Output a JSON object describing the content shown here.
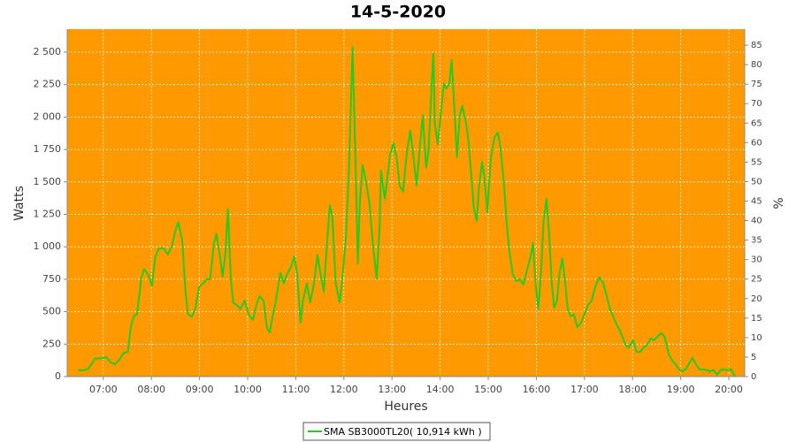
{
  "chart_data": {
    "type": "line",
    "title": "14-5-2020",
    "x_label": "Heures",
    "y_label": "Watts",
    "y2_label": "%",
    "x": [
      6.47,
      6.6,
      6.69,
      6.83,
      6.96,
      7.06,
      7.15,
      7.24,
      7.33,
      7.42,
      7.51,
      7.57,
      7.64,
      7.7,
      7.79,
      7.85,
      7.94,
      8.01,
      8.08,
      8.16,
      8.25,
      8.34,
      8.43,
      8.49,
      8.56,
      8.64,
      8.71,
      8.76,
      8.84,
      8.91,
      8.99,
      9.08,
      9.15,
      9.22,
      9.3,
      9.35,
      9.41,
      9.48,
      9.54,
      9.59,
      9.65,
      9.7,
      9.78,
      9.85,
      9.94,
      10.03,
      10.11,
      10.18,
      10.25,
      10.33,
      10.4,
      10.46,
      10.51,
      10.58,
      10.68,
      10.75,
      10.82,
      10.9,
      10.97,
      11.03,
      11.1,
      11.15,
      11.23,
      11.3,
      11.38,
      11.45,
      11.5,
      11.58,
      11.65,
      11.71,
      11.76,
      11.83,
      11.91,
      11.96,
      12.04,
      12.11,
      12.18,
      12.24,
      12.29,
      12.33,
      12.39,
      12.46,
      12.53,
      12.61,
      12.68,
      12.74,
      12.77,
      12.85,
      12.9,
      12.96,
      13.03,
      13.1,
      13.16,
      13.23,
      13.31,
      13.38,
      13.45,
      13.51,
      13.58,
      13.64,
      13.71,
      13.76,
      13.82,
      13.86,
      13.89,
      13.95,
      14.02,
      14.08,
      14.13,
      14.19,
      14.24,
      14.3,
      14.35,
      14.41,
      14.46,
      14.54,
      14.59,
      14.65,
      14.7,
      14.76,
      14.81,
      14.87,
      14.92,
      14.98,
      15.05,
      15.13,
      15.2,
      15.25,
      15.33,
      15.38,
      15.44,
      15.51,
      15.58,
      15.66,
      15.73,
      15.81,
      15.88,
      15.93,
      15.99,
      16.04,
      16.1,
      16.15,
      16.21,
      16.26,
      16.32,
      16.37,
      16.43,
      16.48,
      16.54,
      16.6,
      16.65,
      16.71,
      16.78,
      16.85,
      16.93,
      17.0,
      17.07,
      17.15,
      17.22,
      17.31,
      17.39,
      17.46,
      17.53,
      17.61,
      17.68,
      17.77,
      17.85,
      17.92,
      18.01,
      18.08,
      18.16,
      18.23,
      18.3,
      18.38,
      18.45,
      18.53,
      18.6,
      18.67,
      18.75,
      18.82,
      18.89,
      18.97,
      19.04,
      19.11,
      19.19,
      19.24,
      19.32,
      19.39,
      19.46,
      19.54,
      19.61,
      19.68,
      19.76,
      19.83,
      19.9,
      19.98,
      20.05,
      20.13
    ],
    "series": [
      {
        "name": "SMA SB3000TL20( 10,914 kWh )",
        "color": "#22cc22",
        "values": [
          50,
          50,
          60,
          140,
          140,
          150,
          110,
          95,
          130,
          180,
          190,
          380,
          470,
          480,
          760,
          830,
          780,
          700,
          925,
          990,
          990,
          940,
          1010,
          1115,
          1190,
          1050,
          650,
          480,
          460,
          520,
          690,
          720,
          750,
          750,
          1030,
          1100,
          960,
          770,
          960,
          1290,
          755,
          570,
          550,
          520,
          585,
          470,
          435,
          550,
          620,
          585,
          375,
          340,
          450,
          570,
          800,
          720,
          790,
          845,
          925,
          790,
          415,
          585,
          720,
          570,
          720,
          940,
          825,
          655,
          1030,
          1320,
          1230,
          720,
          570,
          720,
          1060,
          1640,
          2540,
          1675,
          870,
          1335,
          1630,
          1505,
          1335,
          995,
          755,
          1130,
          1590,
          1370,
          1520,
          1710,
          1800,
          1675,
          1470,
          1425,
          1730,
          1895,
          1675,
          1470,
          1780,
          2015,
          1610,
          1745,
          2220,
          2490,
          1950,
          1790,
          2050,
          2260,
          2220,
          2255,
          2440,
          2050,
          1690,
          2015,
          2085,
          1950,
          1810,
          1540,
          1300,
          1200,
          1470,
          1655,
          1540,
          1265,
          1675,
          1845,
          1880,
          1780,
          1470,
          1200,
          960,
          790,
          735,
          750,
          710,
          825,
          925,
          1030,
          690,
          520,
          825,
          1200,
          1370,
          1130,
          720,
          530,
          585,
          790,
          910,
          720,
          520,
          465,
          480,
          380,
          415,
          480,
          550,
          585,
          690,
          765,
          720,
          620,
          520,
          450,
          395,
          325,
          245,
          225,
          280,
          190,
          190,
          225,
          245,
          295,
          280,
          315,
          335,
          300,
          175,
          125,
          95,
          55,
          40,
          60,
          110,
          145,
          95,
          55,
          55,
          50,
          40,
          50,
          15,
          50,
          55,
          50,
          55,
          0
        ]
      }
    ],
    "xlim": [
      6.25,
      20.33
    ],
    "xticks": [
      {
        "value": 7,
        "label": "07:00"
      },
      {
        "value": 8,
        "label": "08:00"
      },
      {
        "value": 9,
        "label": "09:00"
      },
      {
        "value": 10,
        "label": "10:00"
      },
      {
        "value": 11,
        "label": "11:00"
      },
      {
        "value": 12,
        "label": "12:00"
      },
      {
        "value": 13,
        "label": "13:00"
      },
      {
        "value": 14,
        "label": "14:00"
      },
      {
        "value": 15,
        "label": "15:00"
      },
      {
        "value": 16,
        "label": "16:00"
      },
      {
        "value": 17,
        "label": "17:00"
      },
      {
        "value": 18,
        "label": "18:00"
      },
      {
        "value": 19,
        "label": "19:00"
      },
      {
        "value": 20,
        "label": "20:00"
      }
    ],
    "ylim": [
      0,
      2677
    ],
    "yticks": [
      0,
      250,
      500,
      750,
      {
        "value": 1000,
        "label": "1 000"
      },
      {
        "value": 1250,
        "label": "1 250"
      },
      {
        "value": 1500,
        "label": "1 500"
      },
      {
        "value": 1750,
        "label": "1 750"
      },
      {
        "value": 2000,
        "label": "2 000"
      },
      {
        "value": 2250,
        "label": "2 250"
      },
      {
        "value": 2500,
        "label": "2 500"
      }
    ],
    "y2lim": [
      0,
      89.1
    ],
    "y2ticks": [
      0,
      5,
      10,
      15,
      20,
      25,
      30,
      35,
      40,
      45,
      50,
      55,
      60,
      65,
      70,
      75,
      80,
      85
    ],
    "grid": true,
    "plot_background": "#ff9900",
    "legend": "bottom"
  }
}
